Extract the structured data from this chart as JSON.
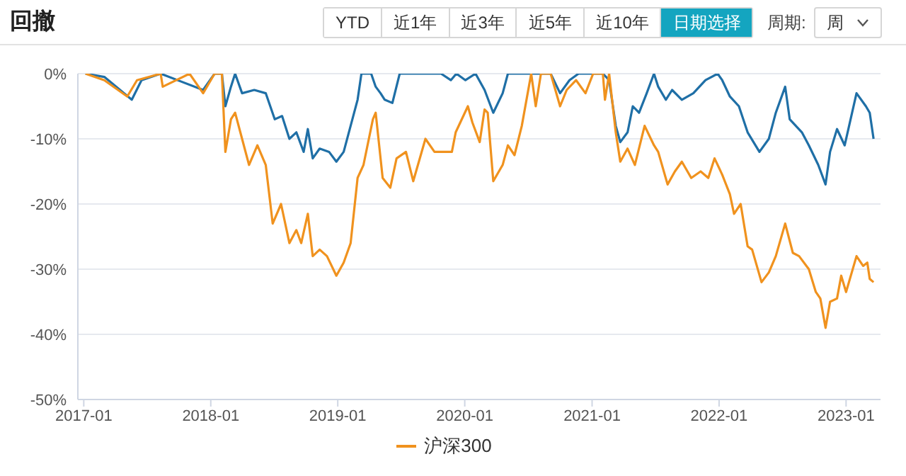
{
  "chart_data": {
    "type": "line",
    "title": "回撤",
    "annotations": [
      "YTD",
      "近1年",
      "近3年",
      "近5年",
      "近10年",
      "日期选择",
      "周期:",
      "周"
    ],
    "xlim": [
      "2016-12-15",
      "2023-04-10"
    ],
    "xticks": [
      "2017-01",
      "2018-01",
      "2019-01",
      "2020-01",
      "2021-01",
      "2022-01",
      "2023-01"
    ],
    "ylim": [
      -50,
      0
    ],
    "yticks": [
      {
        "value": -50,
        "label": "-50%"
      },
      {
        "value": -40,
        "label": "-40%"
      },
      {
        "value": -30,
        "label": "-30%"
      },
      {
        "value": -20,
        "label": "-20%"
      },
      {
        "value": -10,
        "label": "-10%"
      },
      {
        "value": 0,
        "label": "0%"
      }
    ],
    "grid": "y",
    "legend": "bottom",
    "marker": "none",
    "line_style": "solid",
    "series": [
      {
        "color": "#1f6fa6",
        "x": [
          "2017-01-06",
          "2017-03-01",
          "2017-05-19",
          "2017-06-16",
          "2017-08-10",
          "2017-12-10",
          "2018-01-12",
          "2018-02-02",
          "2018-02-12",
          "2018-02-28",
          "2018-03-12",
          "2018-04-01",
          "2018-05-06",
          "2018-06-08",
          "2018-07-04",
          "2018-07-25",
          "2018-08-15",
          "2018-09-04",
          "2018-09-25",
          "2018-10-07",
          "2018-10-21",
          "2018-11-10",
          "2018-12-07",
          "2018-12-28",
          "2019-01-18",
          "2019-02-07",
          "2019-02-27",
          "2019-03-10",
          "2019-04-07",
          "2019-04-20",
          "2019-05-04",
          "2019-05-16",
          "2019-06-07",
          "2019-06-28",
          "2019-07-25",
          "2019-09-03",
          "2019-10-25",
          "2019-11-22",
          "2019-12-08",
          "2020-01-03",
          "2020-02-01",
          "2020-02-27",
          "2020-03-23",
          "2020-04-19",
          "2020-05-04",
          "2020-07-10",
          "2020-09-04",
          "2020-10-01",
          "2020-10-28",
          "2020-11-23",
          "2021-02-01",
          "2021-02-19",
          "2021-03-10",
          "2021-03-23",
          "2021-04-13",
          "2021-04-28",
          "2021-05-16",
          "2021-06-07",
          "2021-06-28",
          "2021-07-10",
          "2021-08-01",
          "2021-08-19",
          "2021-09-16",
          "2021-10-19",
          "2021-11-23",
          "2021-12-28",
          "2022-01-10",
          "2022-02-01",
          "2022-02-27",
          "2022-03-24",
          "2022-04-27",
          "2022-05-24",
          "2022-06-13",
          "2022-07-10",
          "2022-07-23",
          "2022-08-27",
          "2022-09-16",
          "2022-10-13",
          "2022-11-03",
          "2022-11-16",
          "2022-12-06",
          "2022-12-28",
          "2023-01-31",
          "2023-02-27",
          "2023-03-10",
          "2023-03-21"
        ],
        "values": [
          0,
          -0.5,
          -4,
          -1,
          0,
          -2.5,
          0,
          0,
          -5,
          -2,
          0,
          -3,
          -2.5,
          -3,
          -7,
          -6.5,
          -10,
          -9,
          -12,
          -8.5,
          -13,
          -11.5,
          -12,
          -13.5,
          -12,
          -8,
          -4,
          0,
          0,
          -2,
          -3,
          -4,
          -4.5,
          0,
          0,
          0,
          0,
          -1,
          0,
          -1,
          0,
          -2.5,
          -6,
          -3,
          0,
          0,
          0,
          -3,
          -1,
          0,
          0,
          -1,
          -8,
          -10.5,
          -9,
          -5,
          -6,
          -3,
          0,
          -2,
          -4,
          -2.5,
          -4,
          -3,
          -1,
          0,
          -1,
          -3.5,
          -5,
          -9,
          -12,
          -10,
          -6,
          -2,
          -7,
          -9,
          -11,
          -14,
          -17,
          -12,
          -8.5,
          -11,
          -3,
          -5,
          -6,
          -10
        ]
      },
      {
        "name": "沪深300",
        "color": "#f0921e",
        "x": [
          "2017-01-06",
          "2017-03-01",
          "2017-05-06",
          "2017-06-03",
          "2017-08-10",
          "2017-08-16",
          "2017-11-01",
          "2017-12-10",
          "2018-01-12",
          "2018-02-02",
          "2018-02-12",
          "2018-02-28",
          "2018-03-12",
          "2018-04-01",
          "2018-04-21",
          "2018-05-15",
          "2018-06-08",
          "2018-06-28",
          "2018-07-22",
          "2018-08-15",
          "2018-09-04",
          "2018-09-18",
          "2018-10-07",
          "2018-10-21",
          "2018-11-10",
          "2018-12-01",
          "2018-12-28",
          "2019-01-18",
          "2019-02-07",
          "2019-02-27",
          "2019-03-16",
          "2019-04-12",
          "2019-04-20",
          "2019-05-10",
          "2019-06-01",
          "2019-06-19",
          "2019-07-16",
          "2019-08-06",
          "2019-09-10",
          "2019-10-06",
          "2019-11-03",
          "2019-11-25",
          "2019-12-06",
          "2020-01-10",
          "2020-01-23",
          "2020-02-13",
          "2020-02-27",
          "2020-03-07",
          "2020-03-23",
          "2020-04-19",
          "2020-05-04",
          "2020-05-23",
          "2020-06-13",
          "2020-07-10",
          "2020-07-23",
          "2020-08-07",
          "2020-09-04",
          "2020-10-01",
          "2020-10-20",
          "2020-11-16",
          "2020-12-13",
          "2021-01-04",
          "2021-02-01",
          "2021-02-07",
          "2021-02-19",
          "2021-03-10",
          "2021-03-23",
          "2021-04-13",
          "2021-05-04",
          "2021-06-01",
          "2021-06-28",
          "2021-07-10",
          "2021-08-06",
          "2021-08-27",
          "2021-09-16",
          "2021-10-13",
          "2021-11-09",
          "2021-12-01",
          "2021-12-19",
          "2022-01-10",
          "2022-02-01",
          "2022-02-13",
          "2022-03-04",
          "2022-03-24",
          "2022-04-06",
          "2022-05-03",
          "2022-05-24",
          "2022-06-13",
          "2022-07-10",
          "2022-08-01",
          "2022-08-19",
          "2022-09-16",
          "2022-10-06",
          "2022-10-19",
          "2022-11-03",
          "2022-11-16",
          "2022-12-06",
          "2022-12-18",
          "2023-01-01",
          "2023-01-31",
          "2023-02-19",
          "2023-03-03",
          "2023-03-10",
          "2023-03-21"
        ],
        "values": [
          0,
          -1,
          -3.5,
          -1,
          0,
          -2,
          0,
          -3,
          0,
          0,
          -12,
          -7,
          -6,
          -10,
          -14,
          -11,
          -14,
          -23,
          -20,
          -26,
          -24,
          -26,
          -21.5,
          -28,
          -27,
          -28,
          -31,
          -29,
          -26,
          -16,
          -14,
          -7,
          -6,
          -16,
          -17.5,
          -13,
          -12,
          -16.5,
          -10,
          -12,
          -12,
          -12,
          -9,
          -5,
          -7.5,
          -10.5,
          -5.5,
          -6,
          -16.5,
          -14,
          -11,
          -12.5,
          -8,
          0,
          -5,
          0,
          0,
          -5,
          -2.5,
          -1,
          -3,
          0,
          0,
          -4,
          0,
          -9,
          -13.5,
          -11.5,
          -14,
          -8,
          -11,
          -12,
          -17,
          -15,
          -13.5,
          -16,
          -15,
          -16,
          -13,
          -15.5,
          -18.5,
          -21.5,
          -20,
          -26.5,
          -27,
          -32,
          -30.5,
          -28,
          -23,
          -27.5,
          -28,
          -30,
          -33.5,
          -34.5,
          -39,
          -35,
          -34.5,
          -31,
          -33.5,
          -28,
          -29.5,
          -29,
          -31.5,
          -32
        ]
      }
    ]
  }
}
